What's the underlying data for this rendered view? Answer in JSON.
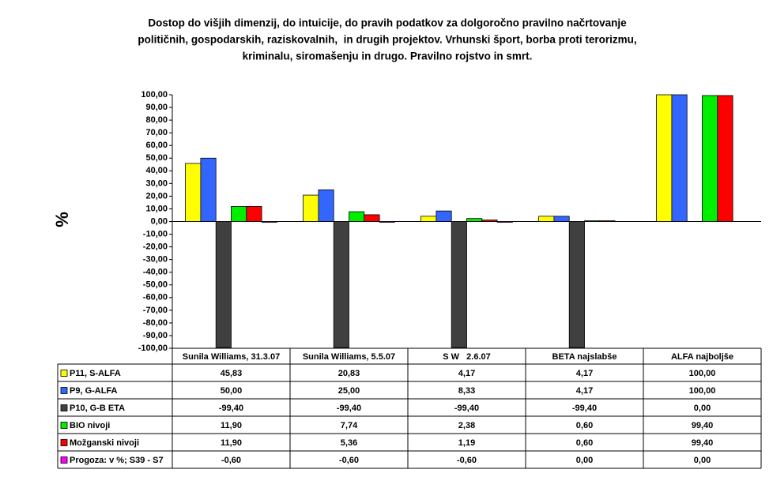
{
  "chart_data": {
    "type": "bar",
    "title": [
      "Dostop do višjih dimenzij, do intuicije, do pravih podatkov za dolgoročno pravilno načrtovanje",
      "političnih, gospodarskih, raziskovalnih,  in drugih projektov. Vrhunski šport, borba proti terorizmu,",
      "kriminalu, siromašenju in drugo. Pravilno rojstvo in smrt."
    ],
    "y_label": "%",
    "categories": [
      "Sunila Williams, 31.3.07",
      "Sunila Williams, 5.5.07",
      "S W   2.6.07",
      "BETA najslabše",
      "ALFA najboljše"
    ],
    "series": [
      {
        "name": "P11, S-ALFA",
        "color": "#ffff00",
        "values": [
          45.83,
          20.83,
          4.17,
          4.17,
          100
        ],
        "value_labels": [
          "45,83",
          "20,83",
          "4,17",
          "4,17",
          "100,00"
        ]
      },
      {
        "name": "P9, G-ALFA",
        "color": "#3366ff",
        "values": [
          50,
          25,
          8.33,
          4.17,
          100
        ],
        "value_labels": [
          "50,00",
          "25,00",
          "8,33",
          "4,17",
          "100,00"
        ]
      },
      {
        "name": "P10, G-B ETA",
        "color": "#404040",
        "values": [
          -99.4,
          -99.4,
          -99.4,
          -99.4,
          0
        ],
        "value_labels": [
          "-99,40",
          "-99,40",
          "-99,40",
          "-99,40",
          "0,00"
        ]
      },
      {
        "name": "BIO nivoji",
        "color": "#00ee00",
        "values": [
          11.9,
          7.74,
          2.38,
          0.6,
          99.4
        ],
        "value_labels": [
          "11,90",
          "7,74",
          "2,38",
          "0,60",
          "99,40"
        ]
      },
      {
        "name": "Možganski nivoji",
        "color": "#ff0000",
        "values": [
          11.9,
          5.36,
          1.19,
          0.6,
          99.4
        ],
        "value_labels": [
          "11,90",
          "5,36",
          "1,19",
          "0,60",
          "99,40"
        ]
      },
      {
        "name": "Progoza: v %; S39 - S7",
        "color": "#ff00ff",
        "values": [
          -0.6,
          -0.6,
          -0.6,
          0,
          0
        ],
        "value_labels": [
          "-0,60",
          "-0,60",
          "-0,60",
          "0,00",
          "0,00"
        ]
      }
    ],
    "ylim": [
      -100,
      100
    ],
    "yticks": [
      {
        "value": -100,
        "label": "-100,00"
      },
      {
        "value": -90,
        "label": "-90,00"
      },
      {
        "value": -80,
        "label": "-80,00"
      },
      {
        "value": -70,
        "label": "-70,00"
      },
      {
        "value": -60,
        "label": "-60,00"
      },
      {
        "value": -50,
        "label": "-50,00"
      },
      {
        "value": -40,
        "label": "-40,00"
      },
      {
        "value": -30,
        "label": "-30,00"
      },
      {
        "value": -20,
        "label": "-20,00"
      },
      {
        "value": -10,
        "label": "-10,00"
      },
      {
        "value": 0,
        "label": "0,00"
      },
      {
        "value": 10,
        "label": "10,00"
      },
      {
        "value": 20,
        "label": "20,00"
      },
      {
        "value": 30,
        "label": "30,00"
      },
      {
        "value": 40,
        "label": "40,00"
      },
      {
        "value": 50,
        "label": "50,00"
      },
      {
        "value": 60,
        "label": "60,00"
      },
      {
        "value": 70,
        "label": "70,00"
      },
      {
        "value": 80,
        "label": "80,00"
      },
      {
        "value": 90,
        "label": "90,00"
      },
      {
        "value": 100,
        "label": "100,00"
      }
    ]
  }
}
